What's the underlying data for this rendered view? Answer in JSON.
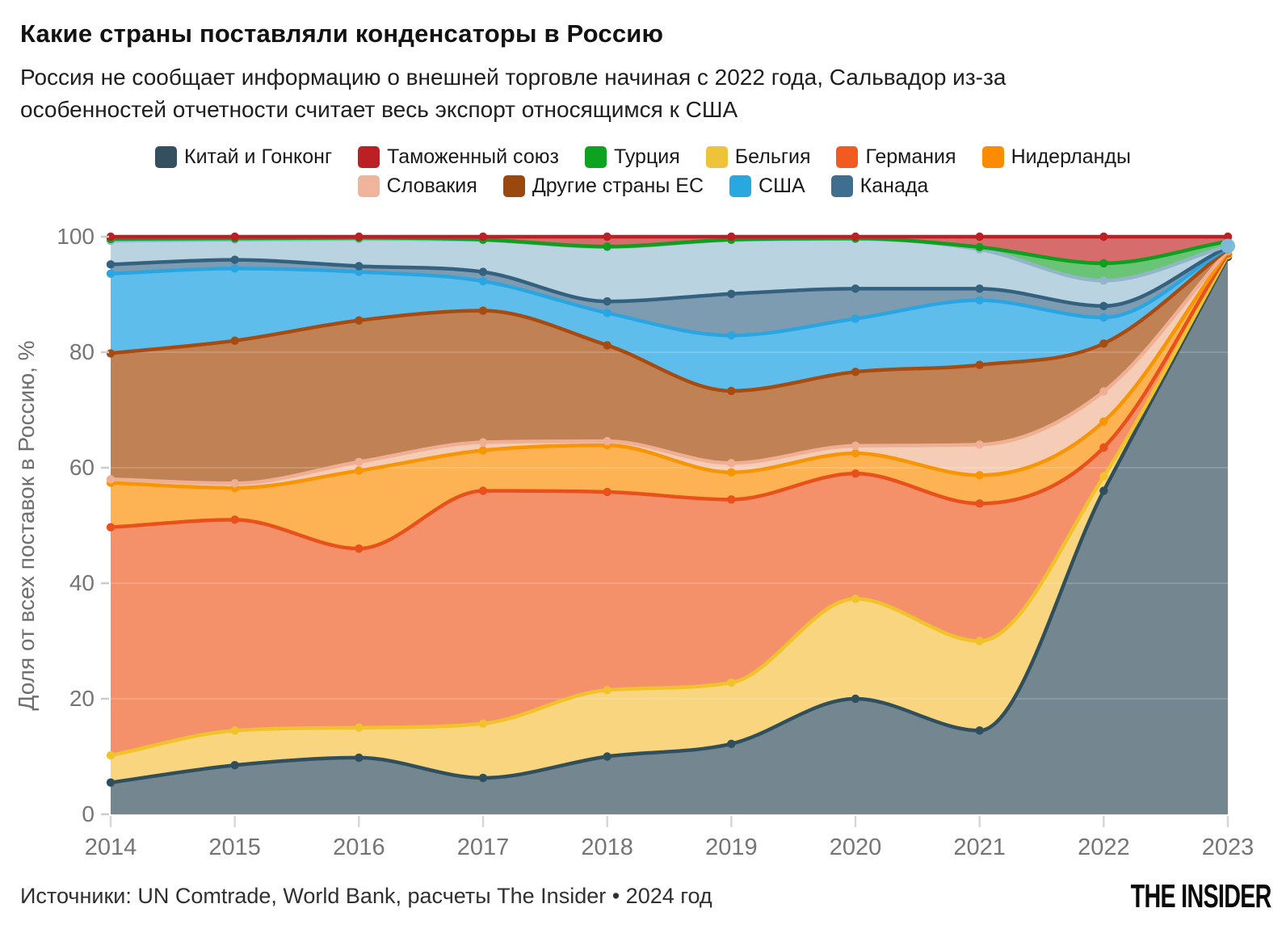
{
  "title": "Какие страны поставляли конденсаторы в Россию",
  "subtitle_lines": [
    "Россия не сообщает информацию о внешней торговле начиная с 2022 года, Сальвадор из-за",
    "особенностей отчетности считает весь экспорт относящимся к США"
  ],
  "legend_rows": [
    [
      {
        "label": "Китай и Гонконг",
        "color": "#34505f"
      },
      {
        "label": "Таможенный союз",
        "color": "#bb2025"
      },
      {
        "label": "Турция",
        "color": "#0da320"
      },
      {
        "label": "Бельгия",
        "color": "#eec239"
      },
      {
        "label": "Германия",
        "color": "#f15b22"
      },
      {
        "label": "Нидерланды",
        "color": "#fb8b00"
      }
    ],
    [
      {
        "label": "Словакия",
        "color": "#f0b49c"
      },
      {
        "label": "Другие страны ЕС",
        "color": "#9a480e"
      },
      {
        "label": "США",
        "color": "#29a8e0"
      },
      {
        "label": "Канада",
        "color": "#3f6e8e"
      }
    ]
  ],
  "chart_data": {
    "type": "area",
    "stacked": true,
    "unit": "%",
    "title": "Какие страны поставляли конденсаторы в Россию",
    "xlabel": "",
    "ylabel": "Доля от всех поставок в Россию, %",
    "x": [
      2014,
      2015,
      2016,
      2017,
      2018,
      2019,
      2020,
      2021,
      2022,
      2023
    ],
    "ylim": [
      0,
      100
    ],
    "yticks": [
      0,
      20,
      40,
      60,
      80,
      100
    ],
    "grid": true,
    "legend_position": "top",
    "series": [
      {
        "name": "Китай и Гонконг",
        "line": "#2f4f5e",
        "fill": "#74868f",
        "in_legend": true,
        "values": [
          5.5,
          8.5,
          9.8,
          6.3,
          10.0,
          12.2,
          20.0,
          14.5,
          56.0,
          96.5
        ]
      },
      {
        "name": "Бельгия",
        "line": "#f0c32c",
        "fill": "#f8d57e",
        "in_legend": true,
        "values": [
          4.7,
          6.0,
          5.2,
          9.4,
          11.5,
          10.6,
          17.3,
          15.5,
          2.5,
          0.3
        ]
      },
      {
        "name": "Германия",
        "line": "#e8511b",
        "fill": "#f4916b",
        "in_legend": true,
        "values": [
          39.5,
          36.5,
          31.0,
          40.3,
          34.3,
          31.7,
          21.7,
          23.8,
          5.0,
          0.3
        ]
      },
      {
        "name": "Нидерланды",
        "line": "#f79502",
        "fill": "#fdb254",
        "in_legend": true,
        "values": [
          7.7,
          5.5,
          13.5,
          7.0,
          8.1,
          4.7,
          3.5,
          4.9,
          4.5,
          0.3
        ]
      },
      {
        "name": "Словакия",
        "line": "#efaf94",
        "fill": "#f5cdb6",
        "in_legend": true,
        "values": [
          0.6,
          0.8,
          1.5,
          1.4,
          0.7,
          1.6,
          1.3,
          5.3,
          5.2,
          0.2
        ]
      },
      {
        "name": "Другие страны ЕС",
        "line": "#a84b10",
        "fill": "#c08155",
        "in_legend": true,
        "values": [
          21.8,
          24.7,
          24.5,
          22.8,
          16.6,
          12.5,
          12.8,
          13.8,
          8.3,
          0.2
        ]
      },
      {
        "name": "США",
        "line": "#29a6e1",
        "fill": "#5fbdec",
        "in_legend": true,
        "values": [
          13.8,
          12.5,
          8.4,
          5.1,
          5.6,
          9.6,
          9.2,
          11.2,
          4.5,
          0.2
        ]
      },
      {
        "name": "Канада",
        "line": "#33617f",
        "fill": "#7e9cb1",
        "in_legend": true,
        "values": [
          1.6,
          1.5,
          1.0,
          1.6,
          2.0,
          7.2,
          5.2,
          2.0,
          2.0,
          0.2
        ]
      },
      {
        "name": "",
        "line": "#92b5ca",
        "fill": "#bad3e1",
        "in_legend": false,
        "unlabeled": true,
        "values": [
          4.1,
          3.5,
          4.7,
          5.5,
          9.4,
          9.3,
          8.6,
          6.8,
          4.4,
          0.2
        ]
      },
      {
        "name": "Турция",
        "line": "#0f9f1f",
        "fill": "#69c476",
        "in_legend": true,
        "values": [
          0.3,
          0.2,
          0.2,
          0.1,
          0.1,
          0.1,
          0.1,
          0.4,
          3.0,
          0.8
        ]
      },
      {
        "name": "Таможенный союз",
        "line": "#bb2025",
        "fill": "#d76c6c",
        "in_legend": true,
        "values": [
          0.4,
          0.3,
          0.2,
          0.5,
          1.7,
          0.5,
          0.3,
          1.8,
          4.6,
          0.8
        ]
      }
    ]
  },
  "axes": {
    "y_tick_labels": [
      "0",
      "20",
      "40",
      "60",
      "80",
      "100"
    ],
    "x_tick_labels": [
      "2014",
      "2015",
      "2016",
      "2017",
      "2018",
      "2019",
      "2020",
      "2021",
      "2022",
      "2023"
    ]
  },
  "footer": {
    "source": "Источники: UN Comtrade, World Bank, расчеты The Insider • 2024 год",
    "logo": "THE INSIDER"
  }
}
